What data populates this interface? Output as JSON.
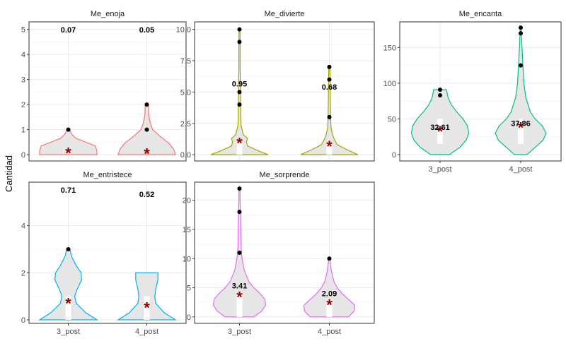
{
  "ylabel": "Cantidad",
  "colors": {
    "strip_bg": "#ffffff",
    "grid": "#ebebeb",
    "violin_fill": "#e6e6e6",
    "mean_marker": "#8b0000",
    "outlier": "#000000",
    "box": "#ffffff"
  },
  "chart_data": [
    {
      "type": "violin",
      "title": "Me_enoja",
      "color": "#f8766d",
      "categories": [
        "3_post",
        "4_post"
      ],
      "ylim": [
        -0.25,
        5.3
      ],
      "yticks": [
        0,
        1,
        2,
        3,
        4,
        5
      ],
      "show_x_ticks": false,
      "grid": true,
      "groups": [
        {
          "category": "3_post",
          "mean": 0.07,
          "mean_label": "0.07",
          "outliers": [
            1
          ],
          "box": {
            "q1": 0,
            "median": 0,
            "q3": 0
          },
          "density": [
            [
              0,
              0.9
            ],
            [
              0.15,
              0.9
            ],
            [
              0.35,
              0.85
            ],
            [
              0.5,
              0.55
            ],
            [
              0.65,
              0.25
            ],
            [
              0.8,
              0.12
            ],
            [
              0.9,
              0.07
            ],
            [
              1,
              0.05
            ]
          ]
        },
        {
          "category": "4_post",
          "mean": 0.05,
          "mean_label": "0.05",
          "outliers": [
            1,
            2
          ],
          "box": {
            "q1": 0,
            "median": 0,
            "q3": 0
          },
          "density": [
            [
              0,
              0.9
            ],
            [
              0.2,
              0.85
            ],
            [
              0.45,
              0.7
            ],
            [
              0.7,
              0.45
            ],
            [
              1,
              0.18
            ],
            [
              1.3,
              0.1
            ],
            [
              1.6,
              0.06
            ],
            [
              2,
              0.05
            ]
          ]
        }
      ]
    },
    {
      "type": "violin",
      "title": "Me_divierte",
      "color": "#a3a500",
      "categories": [
        "3_post",
        "4_post"
      ],
      "ylim": [
        -0.5,
        10.6
      ],
      "yticks": [
        0,
        2.5,
        5,
        7.5,
        10
      ],
      "ytick_labels": [
        "0.0",
        "2.5",
        "5.0",
        "7.5",
        "10.0"
      ],
      "show_x_ticks": false,
      "grid": true,
      "groups": [
        {
          "category": "3_post",
          "mean": 0.95,
          "mean_label": "0.95",
          "outliers": [
            4,
            5,
            9,
            10
          ],
          "box": {
            "q1": 0,
            "median": 0,
            "q3": 1
          },
          "density": [
            [
              0,
              0.9
            ],
            [
              0.3,
              0.6
            ],
            [
              0.7,
              0.25
            ],
            [
              1,
              0.22
            ],
            [
              1.3,
              0.25
            ],
            [
              1.6,
              0.12
            ],
            [
              2.3,
              0.05
            ],
            [
              3,
              0.04
            ],
            [
              5,
              0.03
            ],
            [
              7,
              0.02
            ],
            [
              9,
              0.02
            ],
            [
              10,
              0.015
            ]
          ]
        },
        {
          "category": "4_post",
          "mean": 0.68,
          "mean_label": "0.68",
          "outliers": [
            3,
            6,
            7
          ],
          "box": {
            "q1": 0,
            "median": 0,
            "q3": 1
          },
          "density": [
            [
              0,
              0.9
            ],
            [
              0.4,
              0.55
            ],
            [
              0.8,
              0.25
            ],
            [
              1.2,
              0.16
            ],
            [
              1.6,
              0.1
            ],
            [
              2.2,
              0.05
            ],
            [
              3,
              0.04
            ],
            [
              4.5,
              0.03
            ],
            [
              6,
              0.025
            ],
            [
              7,
              0.015
            ]
          ]
        }
      ]
    },
    {
      "type": "violin",
      "title": "Me_encanta",
      "color": "#00bf7d",
      "categories": [
        "3_post",
        "4_post"
      ],
      "ylim": [
        -9,
        186
      ],
      "yticks": [
        0,
        50,
        100,
        150
      ],
      "show_x_ticks": true,
      "grid": true,
      "groups": [
        {
          "category": "3_post",
          "mean": 32.61,
          "mean_label": "32.61",
          "outliers": [
            83,
            91
          ],
          "box": {
            "q1": 15,
            "median": 25,
            "q3": 50
          },
          "density": [
            [
              0,
              0.3
            ],
            [
              10,
              0.62
            ],
            [
              20,
              0.82
            ],
            [
              30,
              0.9
            ],
            [
              40,
              0.86
            ],
            [
              50,
              0.72
            ],
            [
              60,
              0.52
            ],
            [
              70,
              0.35
            ],
            [
              80,
              0.25
            ],
            [
              91,
              0.2
            ]
          ]
        },
        {
          "category": "4_post",
          "mean": 37.86,
          "mean_label": "37.86",
          "outliers": [
            125,
            170,
            178
          ],
          "box": {
            "q1": 15,
            "median": 25,
            "q3": 50
          },
          "density": [
            [
              0,
              0.2
            ],
            [
              10,
              0.45
            ],
            [
              20,
              0.7
            ],
            [
              30,
              0.8
            ],
            [
              40,
              0.68
            ],
            [
              50,
              0.45
            ],
            [
              60,
              0.3
            ],
            [
              80,
              0.16
            ],
            [
              100,
              0.1
            ],
            [
              125,
              0.07
            ],
            [
              150,
              0.04
            ],
            [
              170,
              0.02
            ],
            [
              178,
              0.015
            ]
          ]
        }
      ]
    },
    {
      "type": "violin",
      "title": "Me_entristece",
      "color": "#00b0f6",
      "categories": [
        "3_post",
        "4_post"
      ],
      "ylim": [
        -0.15,
        5.85
      ],
      "yticks": [
        0,
        2,
        4
      ],
      "show_x_ticks": true,
      "grid": true,
      "groups": [
        {
          "category": "3_post",
          "mean": 0.71,
          "mean_label": "0.71",
          "outliers": [
            3
          ],
          "box": {
            "q1": 0,
            "median": 0,
            "q3": 1
          },
          "density": [
            [
              0,
              0.9
            ],
            [
              0.3,
              0.55
            ],
            [
              0.7,
              0.25
            ],
            [
              1,
              0.2
            ],
            [
              1.3,
              0.28
            ],
            [
              1.7,
              0.42
            ],
            [
              2,
              0.4
            ],
            [
              2.3,
              0.25
            ],
            [
              2.7,
              0.1
            ],
            [
              3,
              0.05
            ]
          ]
        },
        {
          "category": "4_post",
          "mean": 0.52,
          "mean_label": "0.52",
          "outliers": [],
          "box": {
            "q1": 0,
            "median": 0,
            "q3": 1
          },
          "density": [
            [
              0,
              0.9
            ],
            [
              0.3,
              0.55
            ],
            [
              0.7,
              0.28
            ],
            [
              1,
              0.25
            ],
            [
              1.3,
              0.28
            ],
            [
              1.7,
              0.35
            ],
            [
              2,
              0.35
            ]
          ]
        }
      ]
    },
    {
      "type": "violin",
      "title": "Me_sorprende",
      "color": "#e76bf3",
      "categories": [
        "3_post",
        "4_post"
      ],
      "ylim": [
        -1.1,
        23.1
      ],
      "yticks": [
        0,
        5,
        10,
        15,
        20
      ],
      "show_x_ticks": true,
      "grid": true,
      "groups": [
        {
          "category": "3_post",
          "mean": 3.41,
          "mean_label": "3.41",
          "outliers": [
            11,
            18,
            22
          ],
          "box": {
            "q1": 0,
            "median": 2,
            "q3": 4
          },
          "density": [
            [
              0,
              0.45
            ],
            [
              1,
              0.7
            ],
            [
              2,
              0.82
            ],
            [
              3,
              0.8
            ],
            [
              4,
              0.65
            ],
            [
              5,
              0.45
            ],
            [
              6,
              0.3
            ],
            [
              8,
              0.15
            ],
            [
              10,
              0.08
            ],
            [
              12,
              0.05
            ],
            [
              15,
              0.04
            ],
            [
              18,
              0.03
            ],
            [
              20,
              0.02
            ],
            [
              22,
              0.015
            ]
          ]
        },
        {
          "category": "4_post",
          "mean": 2.09,
          "mean_label": "2.09",
          "outliers": [
            10
          ],
          "box": {
            "q1": 0,
            "median": 2,
            "q3": 3
          },
          "density": [
            [
              0,
              0.6
            ],
            [
              1,
              0.78
            ],
            [
              2,
              0.8
            ],
            [
              3,
              0.6
            ],
            [
              4,
              0.4
            ],
            [
              5,
              0.25
            ],
            [
              6,
              0.15
            ],
            [
              7,
              0.1
            ],
            [
              8,
              0.06
            ],
            [
              10,
              0.02
            ]
          ]
        }
      ]
    }
  ]
}
